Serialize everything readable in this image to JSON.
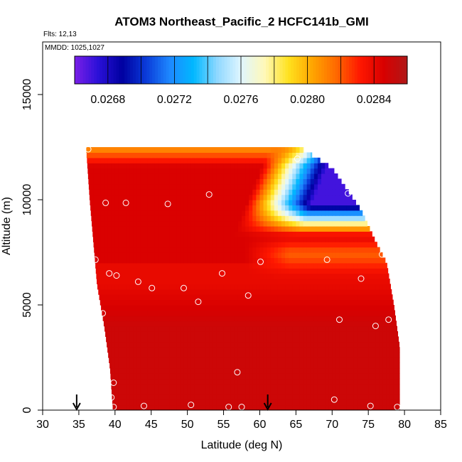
{
  "chart_data": {
    "type": "heatmap",
    "title": "ATOM3 Northeast_Pacific_2 HCFC141b_GMI",
    "flights_label": "Flts: 12,13",
    "mmdd_label": "MMDD: 1025,1027",
    "xlabel": "Latitude (deg N)",
    "ylabel": "Altitude (m)",
    "xlim": [
      30,
      85
    ],
    "ylim": [
      0,
      17500
    ],
    "x_ticks": [
      "30",
      "35",
      "40",
      "45",
      "50",
      "55",
      "60",
      "65",
      "70",
      "75",
      "80",
      "85"
    ],
    "y_ticks": [
      "0",
      "5000",
      "10000",
      "15000"
    ],
    "colorbar": {
      "range": [
        0.0266,
        0.0286
      ],
      "tick_values": [
        0.0268,
        0.0272,
        0.0276,
        0.028,
        0.0284
      ],
      "tick_labels": [
        "0.0268",
        "0.0272",
        "0.0276",
        "0.0280",
        "0.0284"
      ],
      "colors": [
        "#7a1fe8",
        "#2a10d8",
        "#0000a0",
        "#0a3ad8",
        "#1e88ff",
        "#00b8ff",
        "#8fd8ff",
        "#e0f6ff",
        "#fff8b8",
        "#ffe21e",
        "#ffa500",
        "#ff6a00",
        "#ff1800",
        "#d80000",
        "#b01818"
      ]
    },
    "curtain_bounds": {
      "left_edge": [
        [
          12500,
          36.0
        ],
        [
          10000,
          36.5
        ],
        [
          8000,
          37.0
        ],
        [
          6000,
          37.5
        ],
        [
          4000,
          38.5
        ],
        [
          2000,
          39.3
        ],
        [
          0,
          39.7
        ]
      ],
      "right_edge": [
        [
          12500,
          65.5
        ],
        [
          11500,
          70.0
        ],
        [
          10500,
          72.0
        ],
        [
          9500,
          74.0
        ],
        [
          8000,
          76.0
        ],
        [
          7000,
          77.5
        ],
        [
          5000,
          78.5
        ],
        [
          3000,
          79.3
        ],
        [
          0,
          79.3
        ]
      ]
    },
    "field_values": {
      "low_layer": 0.0285,
      "mid_layer": 0.0284,
      "upper_red_layer": 0.02845,
      "band_7500m": 0.0282,
      "top_edge": 0.0281,
      "upper_cold_core": 0.0267
    },
    "sample_points": [
      [
        36.3,
        12400
      ],
      [
        65.2,
        11950
      ],
      [
        72.2,
        10300
      ],
      [
        38.7,
        9850
      ],
      [
        41.5,
        9850
      ],
      [
        47.3,
        9800
      ],
      [
        53.0,
        10250
      ],
      [
        37.3,
        7150
      ],
      [
        60.1,
        7050
      ],
      [
        69.3,
        7150
      ],
      [
        76.9,
        7400
      ],
      [
        39.2,
        6500
      ],
      [
        40.2,
        6400
      ],
      [
        43.2,
        6100
      ],
      [
        45.1,
        5800
      ],
      [
        49.5,
        5800
      ],
      [
        54.8,
        6500
      ],
      [
        74.0,
        6250
      ],
      [
        51.5,
        5150
      ],
      [
        58.4,
        5450
      ],
      [
        38.3,
        4600
      ],
      [
        71.0,
        4300
      ],
      [
        76.0,
        4000
      ],
      [
        77.8,
        4300
      ],
      [
        79.5,
        3850
      ],
      [
        56.9,
        1800
      ],
      [
        39.8,
        1300
      ],
      [
        39.5,
        600
      ],
      [
        70.3,
        500
      ],
      [
        39.8,
        150
      ],
      [
        44.0,
        200
      ],
      [
        50.5,
        250
      ],
      [
        55.7,
        150
      ],
      [
        57.5,
        150
      ],
      [
        75.3,
        200
      ],
      [
        79.0,
        150
      ]
    ],
    "markers": [
      {
        "latitude": 34.7,
        "altitude": 0
      },
      {
        "latitude": 61.1,
        "altitude": 0
      }
    ],
    "legend": "none",
    "grid": false
  }
}
